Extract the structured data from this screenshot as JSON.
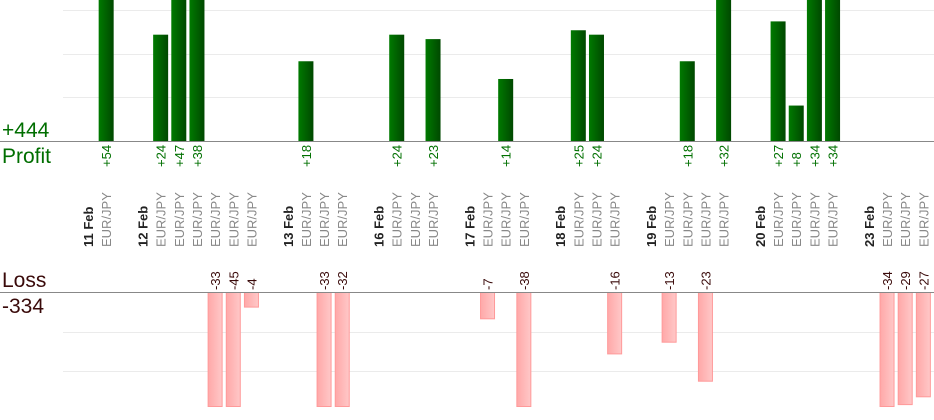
{
  "colors": {
    "profit": "#006400",
    "profit_dark": "#004800",
    "loss_fill": "#ffb3b3",
    "loss_border": "#ff9a9a",
    "loss_text": "#3a0a0a",
    "axis": "#888888",
    "grid": "#ebebeb"
  },
  "summary": {
    "profit_total": "+444",
    "profit_label": "Profit",
    "loss_label": "Loss",
    "loss_total": "-334"
  },
  "chart_data": {
    "type": "bar",
    "title": "",
    "series": [
      {
        "name": "Profit"
      },
      {
        "name": "Loss"
      }
    ],
    "groups": [
      {
        "date": "11 Feb",
        "trades": [
          {
            "pair": "EUR/JPY",
            "value": 54
          }
        ]
      },
      {
        "date": "12 Feb",
        "trades": [
          {
            "pair": "EUR/JPY",
            "value": 24
          },
          {
            "pair": "EUR/JPY",
            "value": 47
          },
          {
            "pair": "EUR/JPY",
            "value": 38
          },
          {
            "pair": "EUR/JPY",
            "value": -33
          },
          {
            "pair": "EUR/JPY",
            "value": -45
          },
          {
            "pair": "EUR/JPY",
            "value": -4
          }
        ]
      },
      {
        "date": "13 Feb",
        "trades": [
          {
            "pair": "EUR/JPY",
            "value": 18
          },
          {
            "pair": "EUR/JPY",
            "value": -33
          },
          {
            "pair": "EUR/JPY",
            "value": -32
          }
        ]
      },
      {
        "date": "16 Feb",
        "trades": [
          {
            "pair": "EUR/JPY",
            "value": 24
          },
          {
            "pair": "EUR/JPY",
            "value": null
          },
          {
            "pair": "EUR/JPY",
            "value": 23
          }
        ]
      },
      {
        "date": "17 Feb",
        "trades": [
          {
            "pair": "EUR/JPY",
            "value": -7
          },
          {
            "pair": "EUR/JPY",
            "value": 14
          },
          {
            "pair": "EUR/JPY",
            "value": -38
          }
        ]
      },
      {
        "date": "18 Feb",
        "trades": [
          {
            "pair": "EUR/JPY",
            "value": 25
          },
          {
            "pair": "EUR/JPY",
            "value": 24
          },
          {
            "pair": "EUR/JPY",
            "value": -16
          }
        ]
      },
      {
        "date": "19 Feb",
        "trades": [
          {
            "pair": "EUR/JPY",
            "value": -13
          },
          {
            "pair": "EUR/JPY",
            "value": 18
          },
          {
            "pair": "EUR/JPY",
            "value": -23
          },
          {
            "pair": "EUR/JPY",
            "value": 32
          }
        ]
      },
      {
        "date": "20 Feb",
        "trades": [
          {
            "pair": "EUR/JPY",
            "value": 27
          },
          {
            "pair": "EUR/JPY",
            "value": 8
          },
          {
            "pair": "EUR/JPY",
            "value": 34
          },
          {
            "pair": "EUR/JPY",
            "value": 34
          }
        ]
      },
      {
        "date": "23 Feb",
        "trades": [
          {
            "pair": "EUR/JPY",
            "value": -34
          },
          {
            "pair": "EUR/JPY",
            "value": -29
          },
          {
            "pair": "EUR/JPY",
            "value": -27
          }
        ]
      }
    ],
    "profit_ylim": [
      0,
      32
    ],
    "loss_ylim": [
      -29.5,
      0
    ],
    "grid": true
  }
}
